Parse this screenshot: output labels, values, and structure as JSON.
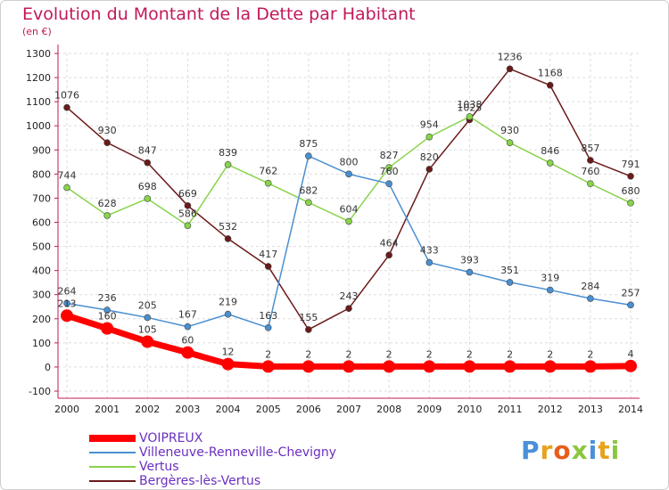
{
  "title": "Evolution du Montant de la Dette par Habitant",
  "subtitle": "(en €)",
  "logo": "Proxiti",
  "chart_data": {
    "type": "line",
    "x": [
      "2000",
      "2001",
      "2002",
      "2003",
      "2004",
      "2005",
      "2006",
      "2007",
      "2008",
      "2009",
      "2010",
      "2011",
      "2012",
      "2013",
      "2014"
    ],
    "ylim": [
      -100,
      1300
    ],
    "yticks": [
      -100,
      0,
      100,
      200,
      300,
      400,
      500,
      600,
      700,
      800,
      900,
      1000,
      1100,
      1200,
      1300
    ],
    "grid": true,
    "legend_position": "bottom-left",
    "series": [
      {
        "name": "VOIPREUX",
        "color": "#ff0000",
        "values": [
          213,
          160,
          105,
          60,
          12,
          2,
          2,
          2,
          2,
          2,
          2,
          2,
          2,
          2,
          4
        ]
      },
      {
        "name": "Villeneuve-Renneville-Chevigny",
        "color": "#4a8fd0",
        "values": [
          264,
          236,
          205,
          167,
          219,
          163,
          875,
          800,
          760,
          433,
          393,
          351,
          319,
          284,
          257
        ]
      },
      {
        "name": "Vertus",
        "color": "#88d44a",
        "values": [
          744,
          628,
          698,
          586,
          839,
          762,
          682,
          604,
          827,
          954,
          1038,
          930,
          846,
          760,
          680
        ]
      },
      {
        "name": "Bergères-lès-Vertus",
        "color": "#6b1a1a",
        "values": [
          1076,
          930,
          847,
          669,
          532,
          417,
          155,
          243,
          464,
          820,
          1025,
          1236,
          1168,
          857,
          791
        ]
      }
    ]
  }
}
